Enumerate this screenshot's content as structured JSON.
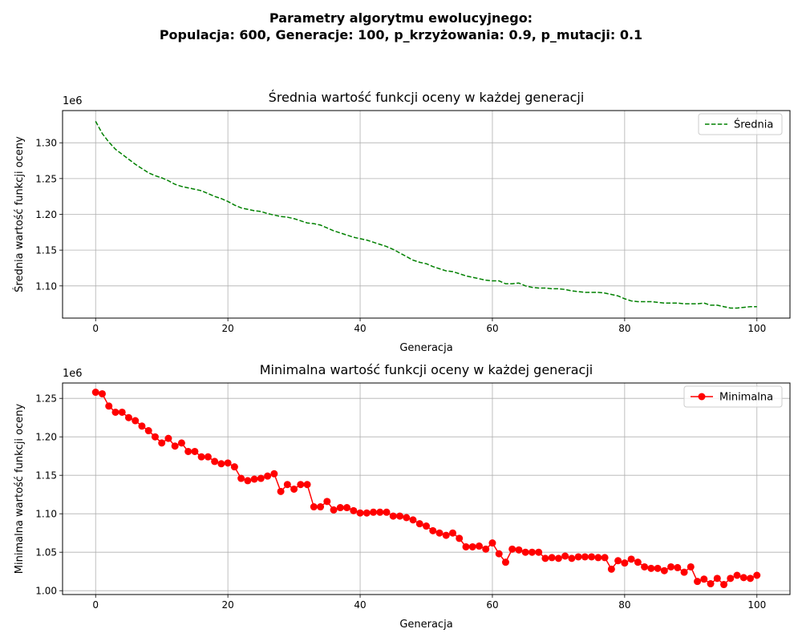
{
  "figure": {
    "suptitle_line1": "Parametry algorytmu ewolucyjnego:",
    "suptitle_line2": "Populacja: 600, Generacje: 100, p_krzyżowania: 0.9, p_mutacji: 0.1"
  },
  "chart_data": [
    {
      "type": "line",
      "title": "Średnia wartość funkcji oceny w każdej generacji",
      "xlabel": "Generacja",
      "ylabel": "Średnia wartość funkcji oceny",
      "offset_text": "1e6",
      "xlim": [
        -5,
        105
      ],
      "ylim": [
        1.055,
        1.345
      ],
      "xticks": [
        0,
        20,
        40,
        60,
        80,
        100
      ],
      "xtick_labels": [
        "0",
        "20",
        "40",
        "60",
        "80",
        "100"
      ],
      "yticks": [
        1.1,
        1.15,
        1.2,
        1.25,
        1.3
      ],
      "ytick_labels": [
        "1.10",
        "1.15",
        "1.20",
        "1.25",
        "1.30"
      ],
      "grid": true,
      "legend": "top-right",
      "series": [
        {
          "name": "Średnia",
          "color": "#008000",
          "line_style": "dashed",
          "marker": "none",
          "x": [
            0,
            1,
            2,
            3,
            4,
            5,
            6,
            7,
            8,
            9,
            10,
            11,
            12,
            13,
            14,
            15,
            16,
            17,
            18,
            19,
            20,
            21,
            22,
            23,
            24,
            25,
            26,
            27,
            28,
            29,
            30,
            31,
            32,
            33,
            34,
            35,
            36,
            37,
            38,
            39,
            40,
            41,
            42,
            43,
            44,
            45,
            46,
            47,
            48,
            49,
            50,
            51,
            52,
            53,
            54,
            55,
            56,
            57,
            58,
            59,
            60,
            61,
            62,
            63,
            64,
            65,
            66,
            67,
            68,
            69,
            70,
            71,
            72,
            73,
            74,
            75,
            76,
            77,
            78,
            79,
            80,
            81,
            82,
            83,
            84,
            85,
            86,
            87,
            88,
            89,
            90,
            91,
            92,
            93,
            94,
            95,
            96,
            97,
            98,
            99,
            100
          ],
          "values": [
            1.33,
            1.313,
            1.301,
            1.291,
            1.284,
            1.277,
            1.27,
            1.264,
            1.258,
            1.254,
            1.251,
            1.247,
            1.242,
            1.239,
            1.237,
            1.235,
            1.233,
            1.229,
            1.225,
            1.222,
            1.218,
            1.213,
            1.209,
            1.207,
            1.205,
            1.204,
            1.201,
            1.199,
            1.197,
            1.196,
            1.194,
            1.191,
            1.188,
            1.187,
            1.185,
            1.181,
            1.177,
            1.174,
            1.171,
            1.168,
            1.166,
            1.164,
            1.161,
            1.158,
            1.155,
            1.151,
            1.146,
            1.141,
            1.136,
            1.133,
            1.131,
            1.127,
            1.124,
            1.121,
            1.12,
            1.117,
            1.114,
            1.112,
            1.11,
            1.108,
            1.107,
            1.107,
            1.103,
            1.103,
            1.104,
            1.1,
            1.098,
            1.097,
            1.097,
            1.096,
            1.096,
            1.095,
            1.093,
            1.092,
            1.091,
            1.091,
            1.091,
            1.09,
            1.088,
            1.086,
            1.082,
            1.079,
            1.078,
            1.078,
            1.078,
            1.077,
            1.076,
            1.076,
            1.076,
            1.075,
            1.075,
            1.075,
            1.076,
            1.073,
            1.073,
            1.071,
            1.069,
            1.069,
            1.07,
            1.071,
            1.071
          ]
        }
      ]
    },
    {
      "type": "line",
      "title": "Minimalna wartość funkcji oceny w każdej generacji",
      "xlabel": "Generacja",
      "ylabel": "Minimalna wartość funkcji oceny",
      "offset_text": "1e6",
      "xlim": [
        -5,
        105
      ],
      "ylim": [
        0.995,
        1.27
      ],
      "xticks": [
        0,
        20,
        40,
        60,
        80,
        100
      ],
      "xtick_labels": [
        "0",
        "20",
        "40",
        "60",
        "80",
        "100"
      ],
      "yticks": [
        1.0,
        1.05,
        1.1,
        1.15,
        1.2,
        1.25
      ],
      "ytick_labels": [
        "1.00",
        "1.05",
        "1.10",
        "1.15",
        "1.20",
        "1.25"
      ],
      "grid": true,
      "legend": "top-right",
      "series": [
        {
          "name": "Minimalna",
          "color": "#ff0000",
          "line_style": "solid",
          "marker": "circle",
          "x": [
            0,
            1,
            2,
            3,
            4,
            5,
            6,
            7,
            8,
            9,
            10,
            11,
            12,
            13,
            14,
            15,
            16,
            17,
            18,
            19,
            20,
            21,
            22,
            23,
            24,
            25,
            26,
            27,
            28,
            29,
            30,
            31,
            32,
            33,
            34,
            35,
            36,
            37,
            38,
            39,
            40,
            41,
            42,
            43,
            44,
            45,
            46,
            47,
            48,
            49,
            50,
            51,
            52,
            53,
            54,
            55,
            56,
            57,
            58,
            59,
            60,
            61,
            62,
            63,
            64,
            65,
            66,
            67,
            68,
            69,
            70,
            71,
            72,
            73,
            74,
            75,
            76,
            77,
            78,
            79,
            80,
            81,
            82,
            83,
            84,
            85,
            86,
            87,
            88,
            89,
            90,
            91,
            92,
            93,
            94,
            95,
            96,
            97,
            98,
            99,
            100
          ],
          "values": [
            1.258,
            1.256,
            1.24,
            1.232,
            1.232,
            1.225,
            1.221,
            1.214,
            1.208,
            1.2,
            1.192,
            1.198,
            1.188,
            1.192,
            1.181,
            1.181,
            1.174,
            1.174,
            1.168,
            1.165,
            1.166,
            1.161,
            1.146,
            1.143,
            1.145,
            1.146,
            1.149,
            1.152,
            1.129,
            1.138,
            1.132,
            1.138,
            1.138,
            1.109,
            1.109,
            1.116,
            1.105,
            1.108,
            1.108,
            1.104,
            1.101,
            1.101,
            1.102,
            1.102,
            1.102,
            1.097,
            1.097,
            1.095,
            1.092,
            1.087,
            1.084,
            1.078,
            1.075,
            1.072,
            1.075,
            1.068,
            1.057,
            1.057,
            1.058,
            1.054,
            1.062,
            1.048,
            1.037,
            1.054,
            1.053,
            1.05,
            1.05,
            1.05,
            1.042,
            1.043,
            1.042,
            1.045,
            1.042,
            1.044,
            1.044,
            1.044,
            1.043,
            1.043,
            1.028,
            1.039,
            1.036,
            1.041,
            1.037,
            1.031,
            1.029,
            1.029,
            1.026,
            1.031,
            1.03,
            1.024,
            1.031,
            1.012,
            1.015,
            1.009,
            1.016,
            1.008,
            1.016,
            1.02,
            1.017,
            1.016,
            1.02
          ]
        }
      ]
    }
  ]
}
